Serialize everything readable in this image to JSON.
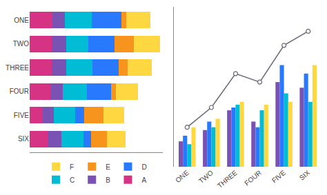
{
  "chart_data": [
    {
      "type": "bar",
      "orientation": "horizontal",
      "stacked": true,
      "categories": [
        "ONE",
        "TWO",
        "THREE",
        "FOUR",
        "FIVE",
        "SIX"
      ],
      "series": [
        {
          "name": "A",
          "color": "#d63384",
          "values": [
            2.0,
            1.9,
            1.9,
            1.8,
            1.1,
            1.6
          ]
        },
        {
          "name": "B",
          "color": "#7952b3",
          "values": [
            1.1,
            1.3,
            1.3,
            1.1,
            1.0,
            1.2
          ]
        },
        {
          "name": "C",
          "color": "#00bcd4",
          "values": [
            2.3,
            1.9,
            2.3,
            2.1,
            1.9,
            1.9
          ]
        },
        {
          "name": "D",
          "color": "#2979ff",
          "values": [
            2.6,
            2.3,
            2.3,
            2.1,
            0.75,
            0.65
          ]
        },
        {
          "name": "E",
          "color": "#f7941d",
          "values": [
            0.45,
            1.7,
            0.75,
            0.45,
            1.7,
            1.4
          ]
        },
        {
          "name": "F",
          "color": "#ffd740",
          "values": [
            2.1,
            2.3,
            2.1,
            1.9,
            1.8,
            1.6
          ]
        }
      ],
      "xlim": [
        0,
        11.628
      ],
      "xticks": [],
      "grid": false,
      "tick_labels": "y",
      "legend": "bottom"
    },
    {
      "type": "bar",
      "categories": [
        "ONE",
        "TWO",
        "THREE",
        "FOUR",
        "FIVE",
        "SIX"
      ],
      "series": [
        {
          "color": "#7952b3",
          "values": [
            0.9,
            1.3,
            2.0,
            1.6,
            3.0,
            2.8
          ]
        },
        {
          "color": "#2979ff",
          "values": [
            1.1,
            1.6,
            2.1,
            1.4,
            3.6,
            3.3
          ]
        },
        {
          "color": "#00bcd4",
          "values": [
            0.8,
            1.4,
            2.2,
            2.0,
            2.6,
            2.3
          ]
        },
        {
          "color": "#ffd740",
          "values": [
            1.4,
            1.7,
            2.3,
            2.2,
            2.3,
            3.6
          ]
        },
        {
          "type": "line",
          "color": "#666677",
          "marker": "circle",
          "values": [
            1.4,
            2.1,
            3.3,
            3.0,
            4.3,
            4.8
          ]
        }
      ],
      "ylim": [
        0,
        5.664
      ],
      "yticks": [],
      "grid": false,
      "tick_labels": "x"
    }
  ]
}
